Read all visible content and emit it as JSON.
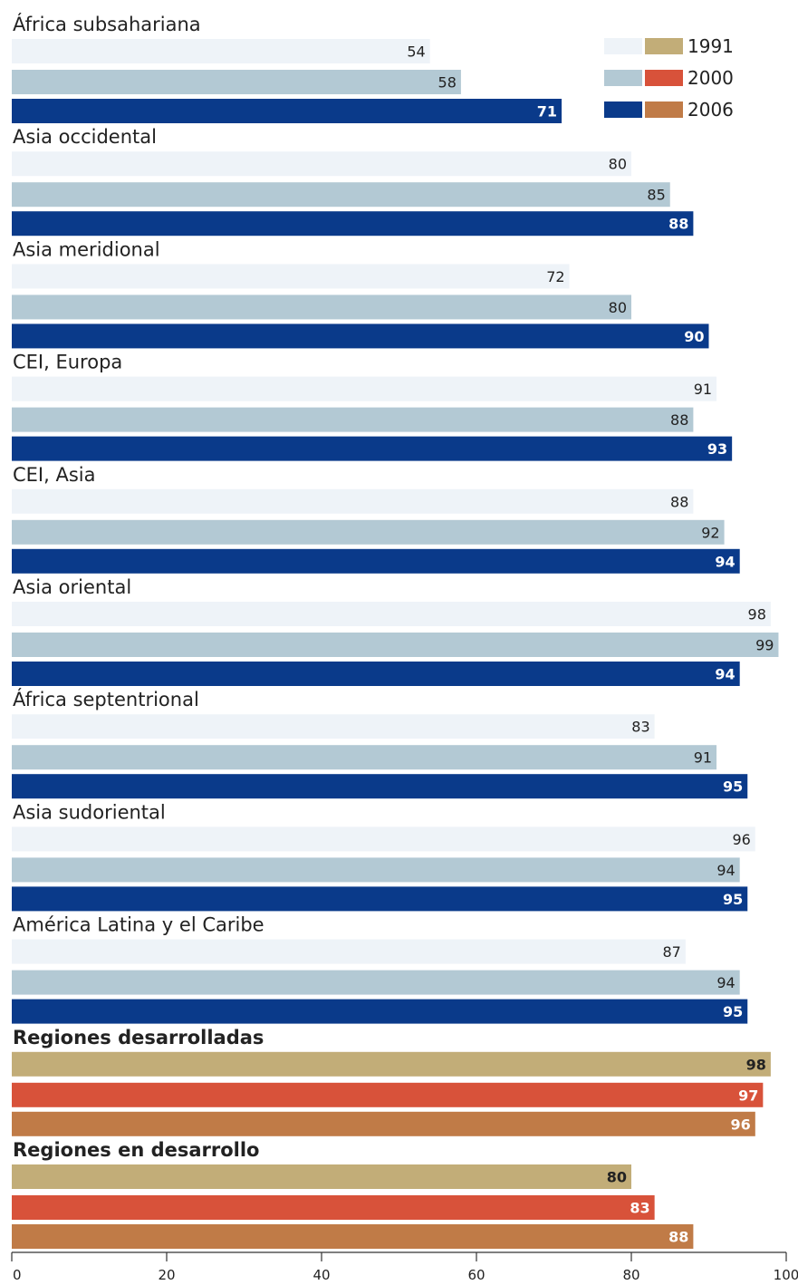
{
  "chart_data": {
    "type": "bar",
    "orientation": "horizontal",
    "xlim": [
      0,
      100
    ],
    "xticks": [
      0,
      20,
      40,
      60,
      80,
      100
    ],
    "legend": {
      "position": "top-right",
      "entries": [
        {
          "label": "1991",
          "colors": [
            "#eef3f8",
            "#c2ad78"
          ]
        },
        {
          "label": "2000",
          "colors": [
            "#b3c9d4",
            "#d8523a"
          ]
        },
        {
          "label": "2006",
          "colors": [
            "#0a3a8a",
            "#c07b47"
          ]
        }
      ]
    },
    "colors": {
      "regional": [
        "#eef3f8",
        "#b3c9d4",
        "#0a3a8a"
      ],
      "aggregate": [
        "#c2ad78",
        "#d8523a",
        "#c07b47"
      ]
    },
    "series_names": [
      "1991",
      "2000",
      "2006"
    ],
    "groups": [
      {
        "label": "África subsahariana",
        "values": [
          54,
          58,
          71
        ],
        "aggregate": false
      },
      {
        "label": "Asia occidental",
        "values": [
          80,
          85,
          88
        ],
        "aggregate": false
      },
      {
        "label": "Asia meridional",
        "values": [
          72,
          80,
          90
        ],
        "aggregate": false
      },
      {
        "label": "CEI, Europa",
        "values": [
          91,
          88,
          93
        ],
        "aggregate": false
      },
      {
        "label": "CEI, Asia",
        "values": [
          88,
          92,
          94
        ],
        "aggregate": false
      },
      {
        "label": "Asia oriental",
        "values": [
          98,
          99,
          94
        ],
        "aggregate": false
      },
      {
        "label": "África septentrional",
        "values": [
          83,
          91,
          95
        ],
        "aggregate": false
      },
      {
        "label": "Asia sudoriental",
        "values": [
          96,
          94,
          95
        ],
        "aggregate": false
      },
      {
        "label": "América Latina y el Caribe",
        "values": [
          87,
          94,
          95
        ],
        "aggregate": false
      },
      {
        "label": "Regiones desarrolladas",
        "values": [
          98,
          97,
          96
        ],
        "aggregate": true
      },
      {
        "label": "Regiones en desarrollo",
        "values": [
          80,
          83,
          88
        ],
        "aggregate": true
      }
    ]
  }
}
